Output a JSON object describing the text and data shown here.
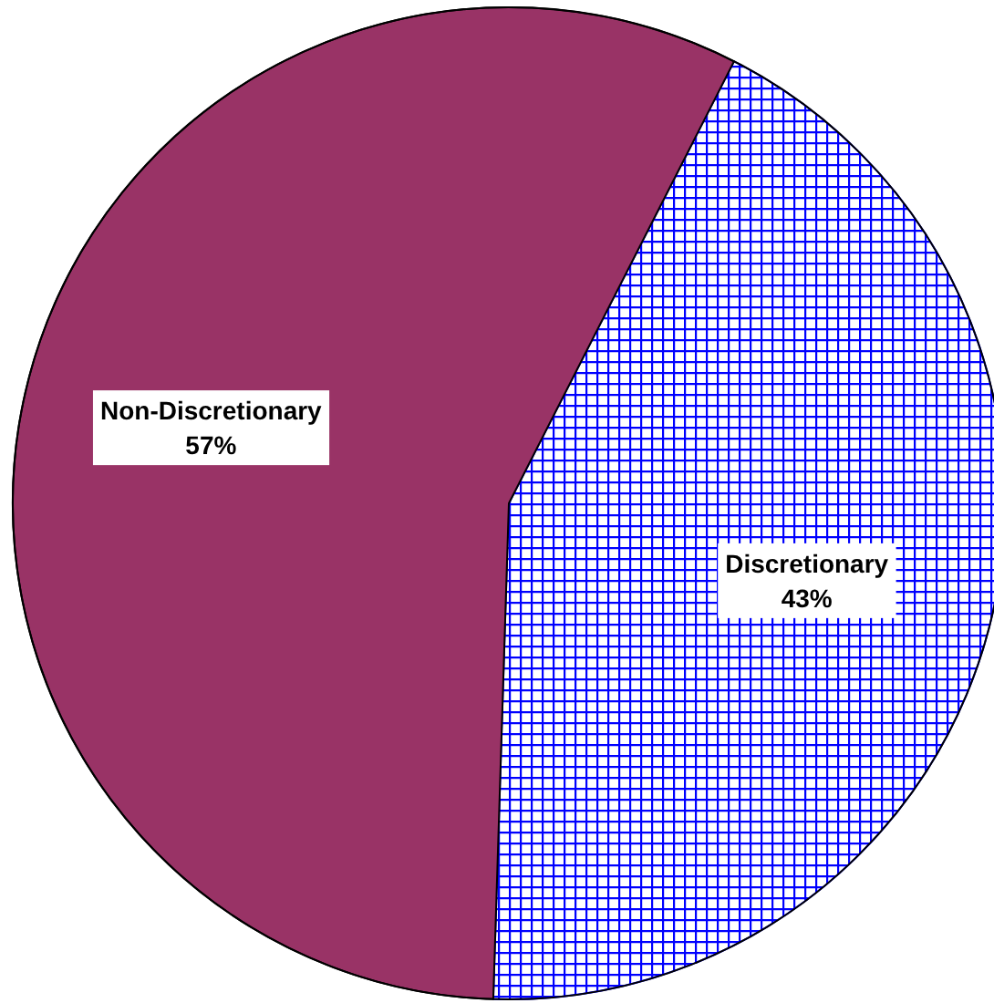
{
  "chart_data": {
    "type": "pie",
    "categories": [
      "Discretionary",
      "Non-Discretionary"
    ],
    "values": [
      43,
      57
    ],
    "colors": [
      "#0000ff",
      "#993366"
    ],
    "value_labels": [
      "43%",
      "57%"
    ],
    "legend": false
  }
}
